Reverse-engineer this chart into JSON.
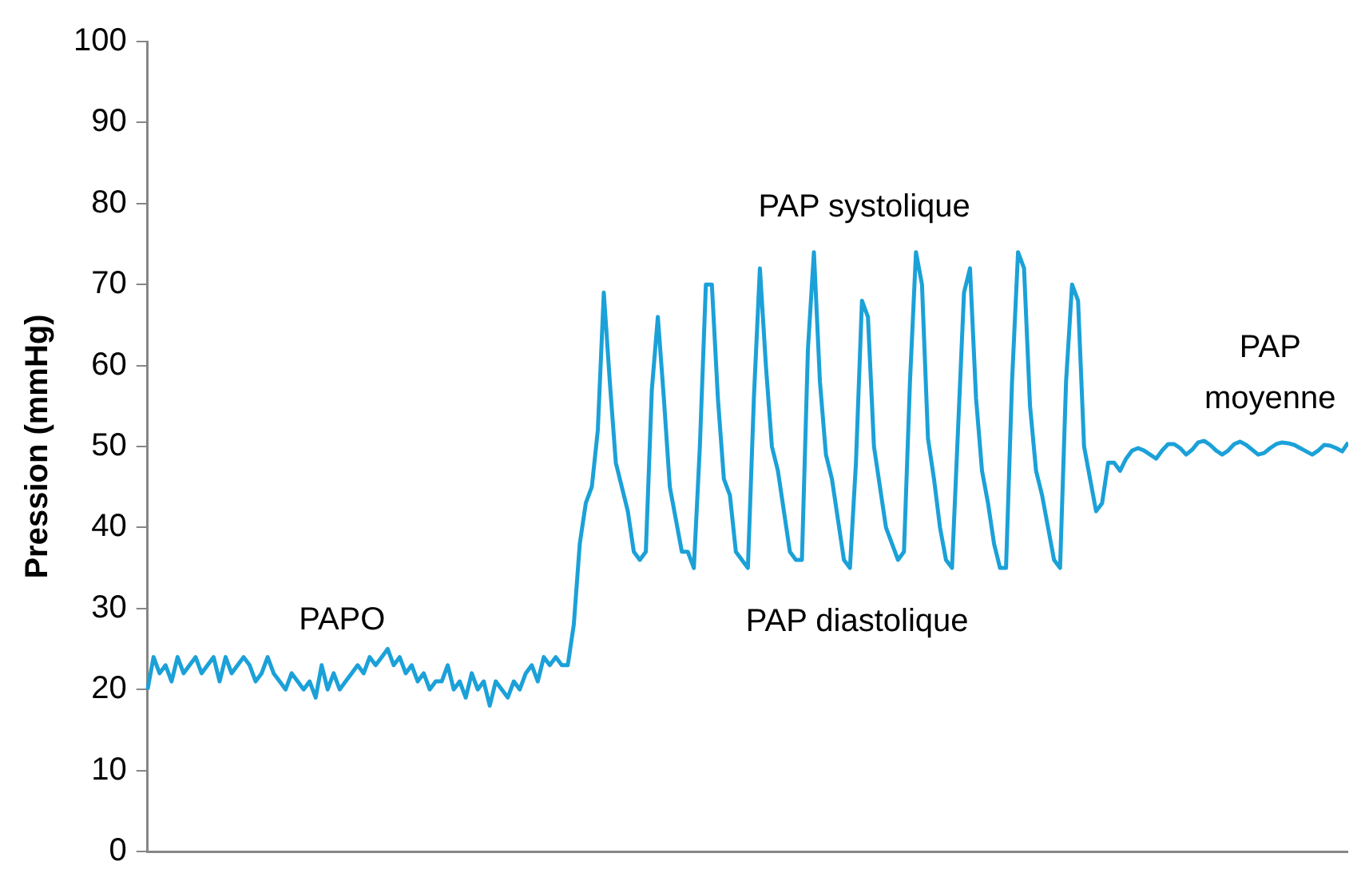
{
  "chart_data": {
    "type": "line",
    "ylabel": "Pression (mmHg)",
    "ylim": [
      0,
      100
    ],
    "yticks": [
      0,
      10,
      20,
      30,
      40,
      50,
      60,
      70,
      80,
      90,
      100
    ],
    "grid": false,
    "legend": false,
    "marker": "none",
    "line_style": "solid",
    "tick_labels": "y",
    "annotations": [
      "PAPO",
      "PAP systolique",
      "PAP diastolique",
      "PAP moyenne"
    ],
    "categories": [
      null,
      null,
      null,
      null,
      null,
      null,
      null,
      null,
      null,
      null,
      null,
      null,
      null,
      null,
      null,
      null,
      null,
      null,
      null,
      null,
      null,
      null,
      null,
      null,
      null,
      null,
      null,
      null,
      null,
      null,
      null,
      null,
      null,
      null,
      null,
      null,
      null,
      null,
      null,
      null,
      null,
      null,
      null,
      null,
      null,
      null,
      null,
      null,
      null,
      null,
      null,
      null,
      null,
      null,
      null,
      null,
      null,
      null,
      null,
      null,
      null,
      null,
      null,
      null,
      null,
      null,
      null,
      null,
      null,
      null,
      null,
      null,
      null,
      null,
      null,
      null,
      null,
      null,
      null,
      null,
      null,
      null,
      null,
      null,
      null,
      null,
      null,
      null,
      null,
      null,
      null,
      null,
      null,
      null,
      null,
      null,
      null,
      null,
      null,
      null,
      null,
      null,
      null,
      null,
      null,
      null,
      null,
      null,
      null,
      null,
      null,
      null,
      null,
      null,
      null,
      null,
      null,
      null,
      null,
      null,
      null,
      null,
      null,
      null,
      null,
      null,
      null,
      null,
      null,
      null,
      null,
      null,
      null,
      null,
      null,
      null,
      null,
      null,
      null,
      null,
      null,
      null,
      null,
      null,
      null,
      null,
      null,
      null,
      null,
      null,
      null,
      null,
      null,
      null,
      null,
      null,
      null,
      null,
      null,
      null,
      null,
      null,
      null,
      null,
      null,
      null,
      null,
      null,
      null,
      null,
      null,
      null,
      null,
      null,
      null,
      null,
      null,
      null,
      null,
      null,
      null,
      null,
      null,
      null,
      null,
      null,
      null,
      null,
      null,
      null,
      null,
      null,
      null,
      null,
      null,
      null,
      null,
      null,
      null,
      null,
      null
    ],
    "series": [
      {
        "color": "#1ba1d8",
        "values": [
          20,
          24,
          22,
          23,
          21,
          24,
          22,
          23,
          24,
          22,
          23,
          24,
          21,
          24,
          22,
          23,
          24,
          23,
          21,
          22,
          24,
          22,
          21,
          20,
          22,
          21,
          20,
          21,
          19,
          23,
          20,
          22,
          20,
          21,
          22,
          23,
          22,
          24,
          23,
          24,
          25,
          23,
          24,
          22,
          23,
          21,
          22,
          20,
          21,
          21,
          23,
          20,
          21,
          19,
          22,
          20,
          21,
          18,
          21,
          20,
          19,
          21,
          20,
          22,
          23,
          21,
          24,
          23,
          24,
          23,
          23,
          28,
          38,
          43,
          45,
          52,
          69,
          58,
          48,
          45,
          42,
          37,
          36,
          37,
          57,
          66,
          56,
          45,
          41,
          37,
          37,
          35,
          50,
          70,
          70,
          56,
          46,
          44,
          37,
          36,
          35,
          56,
          72,
          60,
          50,
          47,
          42,
          37,
          36,
          36,
          62,
          74,
          58,
          49,
          46,
          41,
          36,
          35,
          48,
          68,
          66,
          50,
          45,
          40,
          38,
          36,
          37,
          58,
          74,
          70,
          51,
          46,
          40,
          36,
          35,
          52,
          69,
          72,
          56,
          47,
          43,
          38,
          35,
          35,
          58,
          74,
          72,
          55,
          47,
          44,
          40,
          36,
          35,
          58,
          70,
          68,
          50,
          46,
          42,
          43,
          48,
          48,
          47,
          48.5,
          49.5,
          49.8,
          49.5,
          49,
          48.5,
          49.5,
          50.3,
          50.3,
          49.8,
          49,
          49.6,
          50.5,
          50.7,
          50.2,
          49.5,
          49,
          49.5,
          50.3,
          50.6,
          50.2,
          49.6,
          49,
          49.2,
          49.8,
          50.3,
          50.5,
          50.4,
          50.2,
          49.8,
          49.4,
          49,
          49.5,
          50.2,
          50.1,
          49.8,
          49.4,
          50.5
        ]
      }
    ]
  }
}
